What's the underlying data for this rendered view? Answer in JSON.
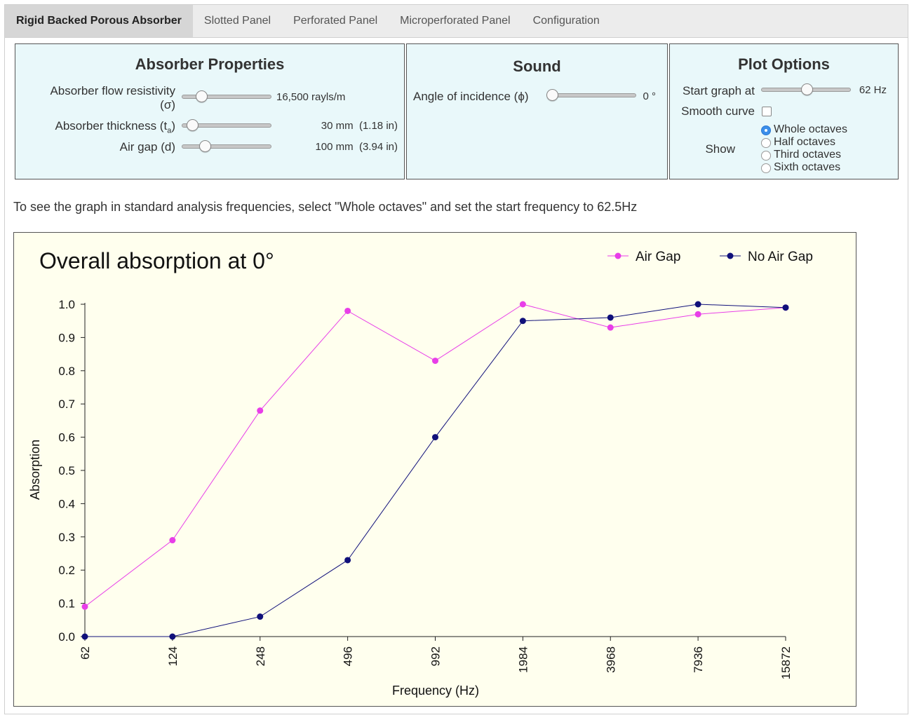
{
  "tabs": [
    {
      "label": "Rigid Backed Porous Absorber",
      "active": true
    },
    {
      "label": "Slotted Panel",
      "active": false
    },
    {
      "label": "Perforated Panel",
      "active": false
    },
    {
      "label": "Microperforated Panel",
      "active": false
    },
    {
      "label": "Configuration",
      "active": false
    }
  ],
  "absorber": {
    "title": "Absorber Properties",
    "flow_label_1": "Absorber flow resistivity",
    "flow_label_2": "(σ)",
    "flow_value": "16,500 rayls/m",
    "flow_slider": 0.18,
    "thickness_label": "Absorber thickness (t",
    "thickness_sub": "a",
    "thickness_close": ")",
    "thickness_value": "30 mm  (1.18 in)",
    "thickness_slider": 0.06,
    "airgap_label": "Air gap (d)",
    "airgap_value": "100 mm  (3.94 in)",
    "airgap_slider": 0.22
  },
  "sound": {
    "title": "Sound",
    "angle_label": "Angle of incidence (ϕ)",
    "angle_value": "0 °",
    "angle_slider": 0.0
  },
  "plot_options": {
    "title": "Plot Options",
    "start_label": "Start graph at",
    "start_value": "62 Hz",
    "start_slider": 0.5,
    "smooth_label": "Smooth curve",
    "smooth_checked": false,
    "show_label": "Show",
    "options": [
      {
        "label": "Whole octaves",
        "selected": true
      },
      {
        "label": "Half octaves",
        "selected": false
      },
      {
        "label": "Third octaves",
        "selected": false
      },
      {
        "label": "Sixth octaves",
        "selected": false
      }
    ]
  },
  "instruction": "To see the graph in standard analysis frequencies, select \"Whole octaves\" and set the start frequency to 62.5Hz",
  "colors": {
    "air_gap": "#e83ee8",
    "no_air_gap": "#10107a"
  },
  "chart_data": {
    "type": "line",
    "title": "Overall absorption at 0°",
    "xlabel": "Frequency (Hz)",
    "ylabel": "Absorption",
    "categories": [
      "62",
      "124",
      "248",
      "496",
      "992",
      "1984",
      "3968",
      "7936",
      "15872"
    ],
    "ylim": [
      0,
      1.0
    ],
    "yticks": [
      "0.0",
      "0.1",
      "0.2",
      "0.3",
      "0.4",
      "0.5",
      "0.6",
      "0.7",
      "0.8",
      "0.9",
      "1.0"
    ],
    "legend_position": "top-right",
    "series": [
      {
        "name": "Air Gap",
        "values": [
          0.09,
          0.29,
          0.68,
          0.98,
          0.83,
          1.0,
          0.93,
          0.97,
          0.99
        ]
      },
      {
        "name": "No Air Gap",
        "values": [
          0.0,
          0.0,
          0.06,
          0.23,
          0.6,
          0.95,
          0.96,
          1.0,
          0.99
        ]
      }
    ]
  }
}
